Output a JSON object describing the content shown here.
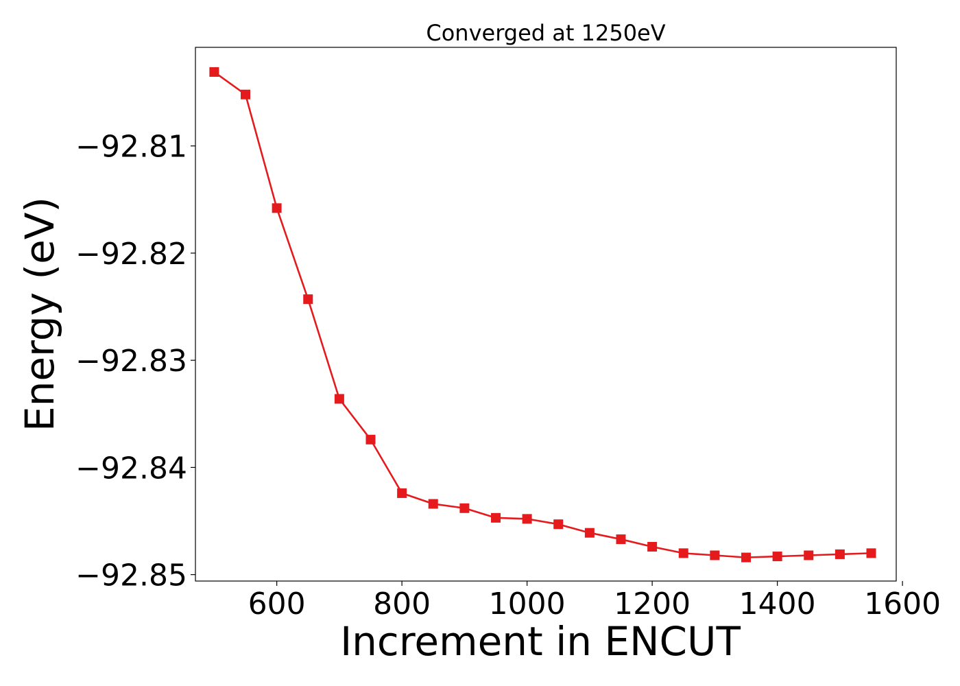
{
  "chart_data": {
    "type": "line",
    "title": "Converged at 1250eV",
    "xlabel": "Increment in ENCUT",
    "ylabel": "Energy (eV)",
    "xlim": [
      470,
      1590
    ],
    "ylim": [
      -92.8506,
      -92.8008
    ],
    "xticks": [
      600,
      800,
      1000,
      1200,
      1400,
      1600
    ],
    "xtick_labels": [
      "600",
      "800",
      "1000",
      "1200",
      "1400",
      "1600"
    ],
    "yticks": [
      -92.81,
      -92.82,
      -92.83,
      -92.84,
      -92.85
    ],
    "ytick_labels": [
      "−92.81",
      "−92.82",
      "−92.83",
      "−92.84",
      "−92.85"
    ],
    "grid": false,
    "series": [
      {
        "color": "#e41a1c",
        "marker": "square",
        "x": [
          500,
          550,
          600,
          650,
          700,
          750,
          800,
          850,
          900,
          950,
          1000,
          1050,
          1100,
          1150,
          1200,
          1250,
          1300,
          1350,
          1400,
          1450,
          1500,
          1550
        ],
        "y": [
          -92.8031,
          -92.8052,
          -92.8158,
          -92.8243,
          -92.8336,
          -92.8374,
          -92.8424,
          -92.8434,
          -92.8438,
          -92.8447,
          -92.8448,
          -92.8453,
          -92.8461,
          -92.8467,
          -92.8474,
          -92.848,
          -92.8482,
          -92.8484,
          -92.8483,
          -92.8482,
          -92.8481,
          -92.848
        ]
      }
    ]
  }
}
